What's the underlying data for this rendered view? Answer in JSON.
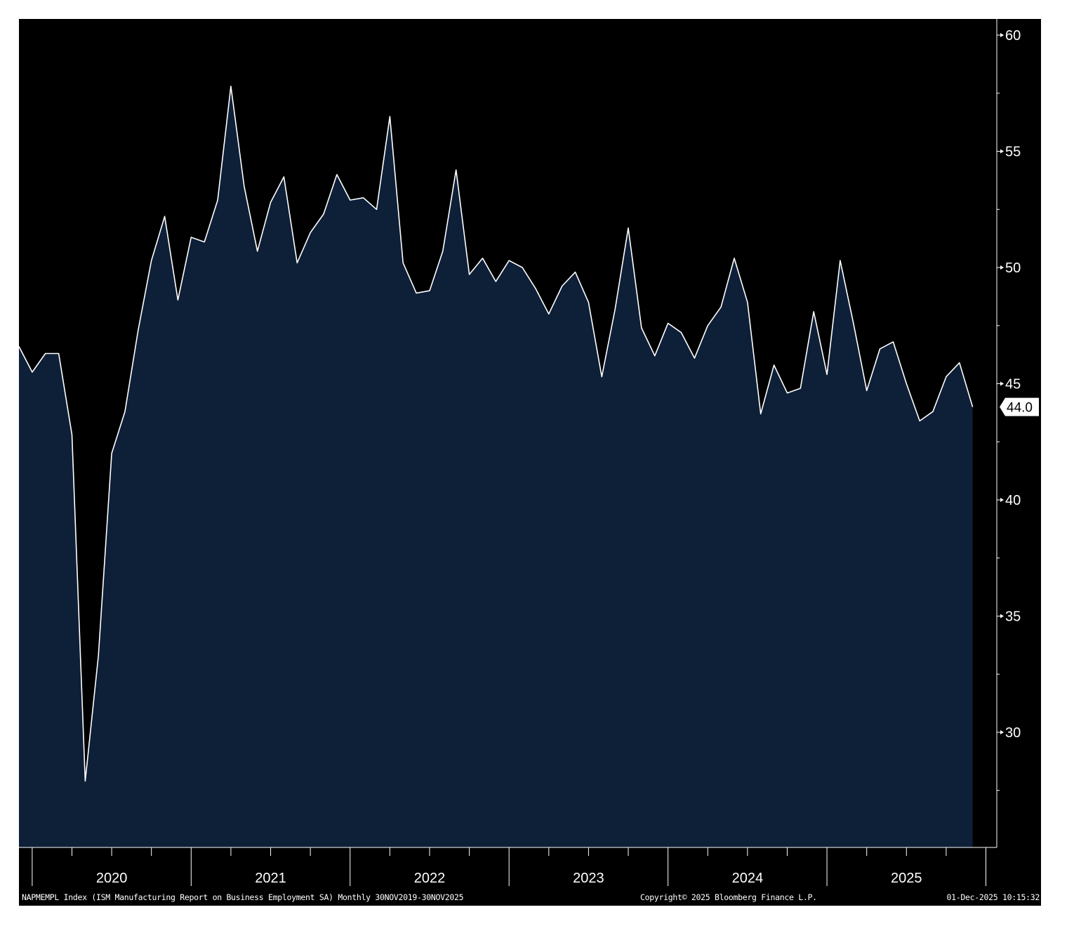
{
  "chart_data": {
    "type": "area",
    "series": [
      {
        "values": [
          46.6,
          45.5,
          46.3,
          46.3,
          42.8,
          27.9,
          33.3,
          42.0,
          43.8,
          47.3,
          50.3,
          52.2,
          48.6,
          51.3,
          51.1,
          52.9,
          57.8,
          53.5,
          50.7,
          52.8,
          53.9,
          50.2,
          51.5,
          52.3,
          54.0,
          52.9,
          53.0,
          52.5,
          56.5,
          50.2,
          48.9,
          49.0,
          50.7,
          54.2,
          49.7,
          50.4,
          49.4,
          50.3,
          50.0,
          49.1,
          48.0,
          49.2,
          49.8,
          48.5,
          45.3,
          48.2,
          51.7,
          47.4,
          46.2,
          47.6,
          47.2,
          46.1,
          47.5,
          48.3,
          50.4,
          48.5,
          43.7,
          45.8,
          44.6,
          44.8,
          48.1,
          45.4,
          50.3,
          47.6,
          44.7,
          46.5,
          46.8,
          45.0,
          43.4,
          43.8,
          45.3,
          45.9,
          44.0
        ]
      }
    ],
    "x": {
      "start_period": "Dec 2019",
      "frequency": "monthly",
      "year_labels": [
        "2020",
        "2021",
        "2022",
        "2023",
        "2024",
        "2025"
      ]
    },
    "y_axis": {
      "ticks": [
        "60",
        "55",
        "50",
        "45",
        "40",
        "35",
        "30"
      ],
      "range": [
        25.0,
        60.7
      ],
      "position": "right"
    },
    "last_value_label": "44.0",
    "grid": false,
    "legend": "none"
  },
  "footer": {
    "description": "NAPMEMPL Index (ISM Manufacturing Report on Business Employment SA) Monthly 30NOV2019-30NOV2025",
    "copyright": "Copyright© 2025 Bloomberg Finance L.P.",
    "timestamp": "01-Dec-2025 10:15:32"
  },
  "colors": {
    "background": "#000000",
    "area_fill": "#0e1f38",
    "line": "#ffffff",
    "axis": "#ffffff"
  }
}
